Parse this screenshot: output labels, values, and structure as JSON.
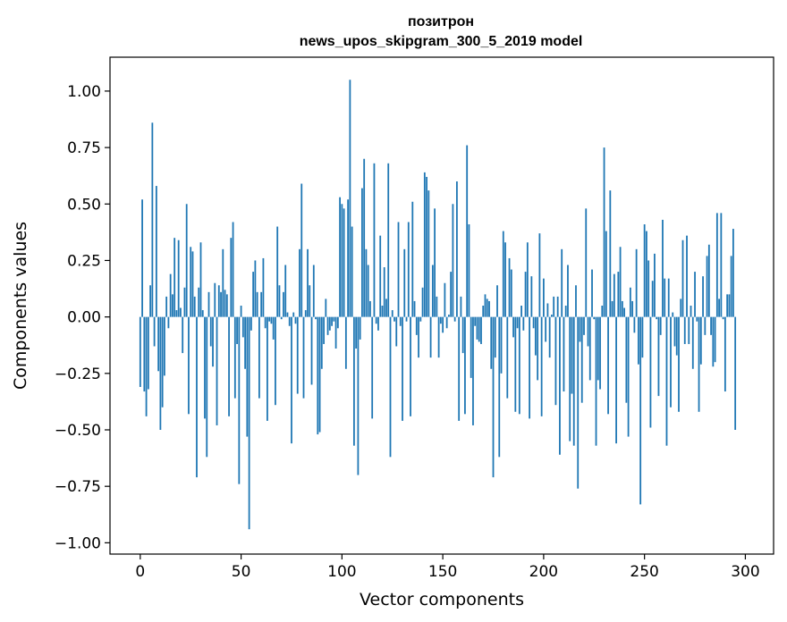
{
  "chart_data": {
    "type": "bar",
    "title": "позитрон",
    "subtitle": "news_upos_skipgram_300_5_2019 model",
    "xlabel": "Vector components",
    "ylabel": "Components values",
    "xlim": [
      -15,
      314
    ],
    "ylim": [
      -1.05,
      1.15
    ],
    "x_ticks": [
      "0",
      "50",
      "100",
      "150",
      "200",
      "250",
      "300"
    ],
    "y_ticks": [
      "−1.00",
      "−0.75",
      "−0.50",
      "−0.25",
      "0.00",
      "0.25",
      "0.50",
      "0.75",
      "1.00"
    ],
    "grid": false,
    "bar_color": "#1f77b4",
    "values": [
      -0.31,
      0.52,
      -0.33,
      -0.44,
      -0.32,
      0.14,
      0.86,
      -0.13,
      0.58,
      -0.24,
      -0.5,
      -0.4,
      -0.26,
      0.09,
      -0.05,
      0.19,
      0.1,
      0.35,
      0.03,
      0.34,
      0.04,
      -0.16,
      0.13,
      0.5,
      -0.43,
      0.31,
      0.29,
      0.09,
      -0.71,
      0.13,
      0.33,
      0.03,
      -0.45,
      -0.62,
      0.11,
      -0.13,
      -0.22,
      0.15,
      -0.48,
      0.14,
      0.11,
      0.3,
      0.12,
      0.1,
      -0.44,
      0.35,
      0.42,
      -0.36,
      -0.12,
      -0.74,
      0.05,
      -0.09,
      -0.23,
      -0.53,
      -0.94,
      -0.06,
      0.2,
      0.25,
      0.11,
      -0.36,
      0.11,
      0.26,
      -0.05,
      -0.46,
      -0.02,
      -0.03,
      -0.1,
      -0.39,
      0.4,
      0.14,
      -0.01,
      0.11,
      0.23,
      0.02,
      -0.04,
      -0.56,
      0.02,
      -0.03,
      -0.34,
      0.3,
      0.59,
      -0.36,
      0.03,
      0.3,
      0.14,
      -0.3,
      0.23,
      -0.01,
      -0.52,
      -0.51,
      -0.23,
      -0.12,
      0.08,
      -0.08,
      -0.06,
      -0.04,
      -0.02,
      -0.14,
      -0.05,
      0.53,
      0.5,
      0.48,
      -0.23,
      0.52,
      1.05,
      0.4,
      -0.57,
      -0.14,
      -0.7,
      -0.1,
      0.57,
      0.7,
      0.3,
      0.23,
      0.07,
      -0.45,
      0.68,
      -0.03,
      -0.06,
      0.36,
      0.05,
      0.22,
      0.08,
      0.68,
      -0.62,
      0.03,
      -0.02,
      -0.13,
      0.42,
      -0.04,
      -0.46,
      0.3,
      -0.02,
      0.42,
      -0.44,
      0.51,
      0.07,
      -0.08,
      -0.18,
      -0.02,
      0.13,
      0.64,
      0.62,
      0.56,
      -0.18,
      0.23,
      0.48,
      0.09,
      -0.18,
      -0.03,
      -0.07,
      0.15,
      -0.05,
      0.01,
      0.2,
      0.5,
      -0.02,
      0.6,
      -0.46,
      0.09,
      -0.16,
      -0.43,
      0.76,
      0.41,
      -0.27,
      -0.48,
      -0.04,
      -0.1,
      -0.11,
      -0.12,
      0.05,
      0.1,
      0.08,
      0.07,
      -0.23,
      -0.71,
      -0.18,
      0.14,
      -0.62,
      -0.25,
      0.38,
      0.33,
      -0.36,
      0.26,
      0.21,
      -0.09,
      -0.42,
      -0.05,
      -0.43,
      0.05,
      -0.06,
      0.2,
      0.33,
      -0.45,
      0.18,
      -0.05,
      -0.17,
      -0.28,
      0.37,
      -0.44,
      0.17,
      -0.11,
      0.06,
      -0.18,
      0.01,
      0.09,
      -0.39,
      0.09,
      -0.61,
      0.3,
      -0.33,
      0.05,
      0.23,
      -0.55,
      -0.34,
      -0.57,
      0.14,
      -0.76,
      -0.11,
      -0.38,
      -0.08,
      0.48,
      -0.13,
      -0.28,
      0.21,
      -0.01,
      -0.57,
      -0.28,
      -0.32,
      0.05,
      0.75,
      0.38,
      -0.43,
      0.56,
      0.07,
      0.19,
      -0.56,
      0.2,
      0.31,
      0.07,
      0.04,
      -0.38,
      -0.53,
      0.13,
      0.07,
      -0.07,
      0.3,
      -0.21,
      -0.83,
      -0.18,
      0.41,
      0.38,
      0.25,
      -0.49,
      0.16,
      0.28,
      -0.01,
      -0.35,
      -0.08,
      0.43,
      0.17,
      -0.57,
      0.17,
      -0.4,
      0.02,
      -0.13,
      -0.17,
      -0.42,
      0.08,
      0.34,
      -0.12,
      0.36,
      -0.12,
      0.05,
      -0.23,
      0.2,
      -0.02,
      -0.42,
      -0.21,
      0.18,
      -0.08,
      0.27,
      0.32,
      -0.08,
      -0.22,
      -0.2,
      0.46,
      0.08,
      0.46,
      -0.01,
      -0.33,
      0.1,
      0.1,
      0.27,
      0.39,
      -0.5
    ]
  }
}
